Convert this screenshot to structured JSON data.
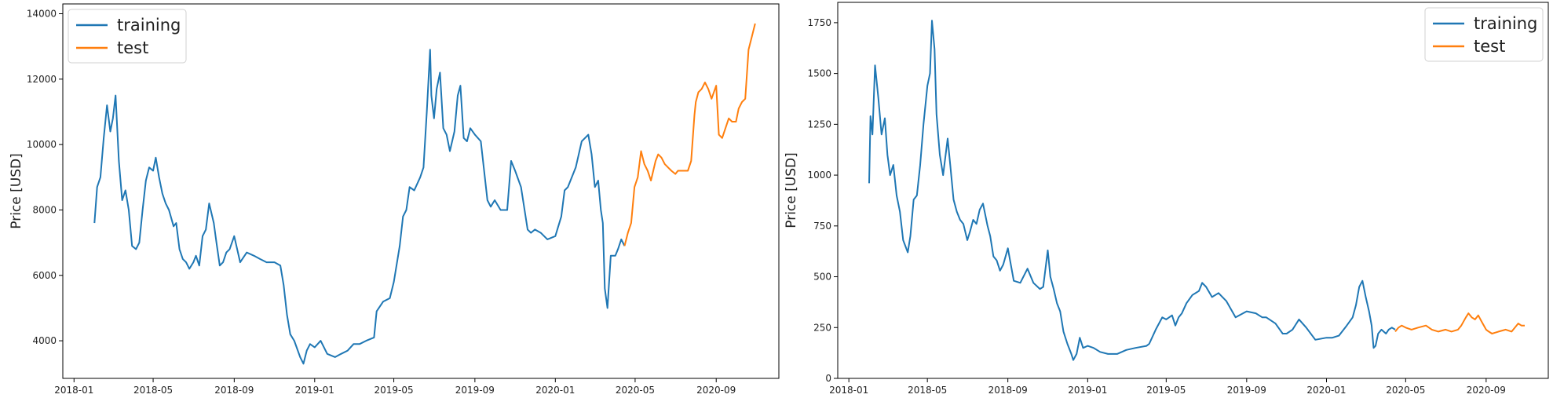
{
  "chart_data": [
    {
      "type": "line",
      "ylabel": "Price [USD]",
      "xlabel": "",
      "x_ticks": [
        "2018-01",
        "2018-05",
        "2018-09",
        "2019-01",
        "2019-05",
        "2019-09",
        "2020-01",
        "2020-05",
        "2020-09"
      ],
      "y_ticks": [
        "4000",
        "6000",
        "8000",
        "10000",
        "12000",
        "14000"
      ],
      "xlim": [
        "2017-12-15",
        "2020-12-05"
      ],
      "ylim": [
        2850,
        14300
      ],
      "legend": {
        "placement": "upper left",
        "entries": [
          "training",
          "test"
        ]
      },
      "grid": false,
      "series": [
        {
          "name": "training",
          "color": "#1f77b4",
          "x": [
            "2018-02-01",
            "2018-02-05",
            "2018-02-10",
            "2018-02-15",
            "2018-02-20",
            "2018-02-25",
            "2018-03-01",
            "2018-03-05",
            "2018-03-10",
            "2018-03-15",
            "2018-03-20",
            "2018-03-25",
            "2018-03-30",
            "2018-04-05",
            "2018-04-10",
            "2018-04-15",
            "2018-04-20",
            "2018-04-25",
            "2018-05-01",
            "2018-05-05",
            "2018-05-10",
            "2018-05-15",
            "2018-05-20",
            "2018-05-25",
            "2018-06-01",
            "2018-06-05",
            "2018-06-10",
            "2018-06-15",
            "2018-06-20",
            "2018-06-25",
            "2018-07-01",
            "2018-07-05",
            "2018-07-10",
            "2018-07-15",
            "2018-07-20",
            "2018-07-25",
            "2018-08-01",
            "2018-08-05",
            "2018-08-10",
            "2018-08-15",
            "2018-08-20",
            "2018-08-25",
            "2018-09-01",
            "2018-09-10",
            "2018-09-20",
            "2018-10-01",
            "2018-10-10",
            "2018-10-20",
            "2018-11-01",
            "2018-11-10",
            "2018-11-15",
            "2018-11-20",
            "2018-11-25",
            "2018-12-01",
            "2018-12-10",
            "2018-12-15",
            "2018-12-20",
            "2018-12-25",
            "2019-01-01",
            "2019-01-10",
            "2019-01-20",
            "2019-02-01",
            "2019-02-10",
            "2019-02-20",
            "2019-03-01",
            "2019-03-10",
            "2019-03-20",
            "2019-04-01",
            "2019-04-05",
            "2019-04-15",
            "2019-04-25",
            "2019-05-01",
            "2019-05-10",
            "2019-05-15",
            "2019-05-20",
            "2019-05-25",
            "2019-06-01",
            "2019-06-10",
            "2019-06-15",
            "2019-06-20",
            "2019-06-25",
            "2019-06-27",
            "2019-07-01",
            "2019-07-05",
            "2019-07-10",
            "2019-07-15",
            "2019-07-20",
            "2019-07-25",
            "2019-08-01",
            "2019-08-06",
            "2019-08-10",
            "2019-08-15",
            "2019-08-20",
            "2019-08-25",
            "2019-09-01",
            "2019-09-10",
            "2019-09-20",
            "2019-09-25",
            "2019-10-01",
            "2019-10-10",
            "2019-10-20",
            "2019-10-26",
            "2019-11-01",
            "2019-11-10",
            "2019-11-20",
            "2019-11-25",
            "2019-12-01",
            "2019-12-10",
            "2019-12-20",
            "2020-01-01",
            "2020-01-10",
            "2020-01-15",
            "2020-01-20",
            "2020-02-01",
            "2020-02-10",
            "2020-02-15",
            "2020-02-20",
            "2020-02-25",
            "2020-03-01",
            "2020-03-06",
            "2020-03-10",
            "2020-03-13",
            "2020-03-16",
            "2020-03-20",
            "2020-03-25",
            "2020-04-01",
            "2020-04-05",
            "2020-04-10",
            "2020-04-15"
          ],
          "values": [
            7600,
            8700,
            9000,
            10200,
            11200,
            10400,
            10800,
            11500,
            9500,
            8300,
            8600,
            8000,
            6900,
            6800,
            7000,
            8000,
            8900,
            9300,
            9200,
            9600,
            9000,
            8500,
            8200,
            8000,
            7500,
            7600,
            6800,
            6500,
            6400,
            6200,
            6400,
            6600,
            6300,
            7200,
            7400,
            8200,
            7600,
            7000,
            6300,
            6400,
            6700,
            6800,
            7200,
            6400,
            6700,
            6600,
            6500,
            6400,
            6400,
            6300,
            5700,
            4800,
            4200,
            4000,
            3500,
            3300,
            3700,
            3900,
            3800,
            4000,
            3600,
            3500,
            3600,
            3700,
            3900,
            3900,
            4000,
            4100,
            4900,
            5200,
            5300,
            5800,
            6900,
            7800,
            8000,
            8700,
            8600,
            9000,
            9300,
            11000,
            12900,
            11500,
            10800,
            11700,
            12200,
            10500,
            10300,
            9800,
            10400,
            11500,
            11800,
            10200,
            10100,
            10500,
            10300,
            10100,
            8300,
            8100,
            8300,
            8000,
            8000,
            9500,
            9200,
            8700,
            7400,
            7300,
            7400,
            7300,
            7100,
            7200,
            7800,
            8600,
            8700,
            9300,
            10100,
            10200,
            10300,
            9700,
            8700,
            8900,
            8000,
            7600,
            5600,
            5000,
            6600,
            6600,
            6800,
            7100,
            6900
          ]
        },
        {
          "name": "test",
          "color": "#ff7f0e",
          "x": [
            "2020-04-15",
            "2020-04-20",
            "2020-04-25",
            "2020-04-30",
            "2020-05-05",
            "2020-05-10",
            "2020-05-15",
            "2020-05-20",
            "2020-05-25",
            "2020-06-01",
            "2020-06-05",
            "2020-06-10",
            "2020-06-15",
            "2020-06-20",
            "2020-06-25",
            "2020-07-01",
            "2020-07-05",
            "2020-07-10",
            "2020-07-15",
            "2020-07-20",
            "2020-07-25",
            "2020-07-30",
            "2020-08-01",
            "2020-08-05",
            "2020-08-10",
            "2020-08-15",
            "2020-08-20",
            "2020-08-25",
            "2020-09-01",
            "2020-09-05",
            "2020-09-10",
            "2020-09-15",
            "2020-09-20",
            "2020-09-25",
            "2020-10-01",
            "2020-10-05",
            "2020-10-10",
            "2020-10-15",
            "2020-10-20",
            "2020-10-25",
            "2020-10-30"
          ],
          "values": [
            6900,
            7300,
            7600,
            8700,
            9000,
            9800,
            9400,
            9200,
            8900,
            9500,
            9700,
            9600,
            9400,
            9300,
            9200,
            9100,
            9200,
            9200,
            9200,
            9200,
            9500,
            10900,
            11300,
            11600,
            11700,
            11900,
            11700,
            11400,
            11800,
            10300,
            10200,
            10500,
            10800,
            10700,
            10700,
            11100,
            11300,
            11400,
            12900,
            13300,
            13700
          ]
        }
      ]
    },
    {
      "type": "line",
      "ylabel": "Price [USD]",
      "xlabel": "",
      "x_ticks": [
        "2018-01",
        "2018-05",
        "2018-09",
        "2019-01",
        "2019-05",
        "2019-09",
        "2020-01",
        "2020-05",
        "2020-09"
      ],
      "y_ticks": [
        "0",
        "250",
        "500",
        "750",
        "1000",
        "1250",
        "1500",
        "1750"
      ],
      "xlim": [
        "2017-12-15",
        "2020-12-05"
      ],
      "ylim": [
        0,
        1850
      ],
      "legend": {
        "placement": "upper right",
        "entries": [
          "training",
          "test"
        ]
      },
      "grid": false,
      "series": [
        {
          "name": "training",
          "color": "#1f77b4",
          "x": [
            "2018-02-01",
            "2018-02-03",
            "2018-02-06",
            "2018-02-10",
            "2018-02-15",
            "2018-02-20",
            "2018-02-25",
            "2018-03-01",
            "2018-03-05",
            "2018-03-10",
            "2018-03-15",
            "2018-03-20",
            "2018-03-25",
            "2018-04-01",
            "2018-04-05",
            "2018-04-10",
            "2018-04-15",
            "2018-04-20",
            "2018-04-25",
            "2018-05-01",
            "2018-05-05",
            "2018-05-08",
            "2018-05-12",
            "2018-05-15",
            "2018-05-20",
            "2018-05-25",
            "2018-06-01",
            "2018-06-05",
            "2018-06-10",
            "2018-06-15",
            "2018-06-20",
            "2018-06-25",
            "2018-07-01",
            "2018-07-05",
            "2018-07-10",
            "2018-07-15",
            "2018-07-20",
            "2018-07-25",
            "2018-08-01",
            "2018-08-05",
            "2018-08-10",
            "2018-08-15",
            "2018-08-20",
            "2018-08-25",
            "2018-09-01",
            "2018-09-10",
            "2018-09-20",
            "2018-10-01",
            "2018-10-10",
            "2018-10-20",
            "2018-10-25",
            "2018-11-01",
            "2018-11-05",
            "2018-11-10",
            "2018-11-15",
            "2018-11-20",
            "2018-11-25",
            "2018-12-01",
            "2018-12-07",
            "2018-12-10",
            "2018-12-15",
            "2018-12-20",
            "2018-12-25",
            "2019-01-01",
            "2019-01-10",
            "2019-01-20",
            "2019-02-01",
            "2019-02-15",
            "2019-03-01",
            "2019-03-15",
            "2019-04-01",
            "2019-04-05",
            "2019-04-15",
            "2019-04-25",
            "2019-05-01",
            "2019-05-10",
            "2019-05-15",
            "2019-05-20",
            "2019-05-25",
            "2019-06-01",
            "2019-06-10",
            "2019-06-20",
            "2019-06-25",
            "2019-07-01",
            "2019-07-10",
            "2019-07-20",
            "2019-08-01",
            "2019-08-15",
            "2019-09-01",
            "2019-09-15",
            "2019-09-25",
            "2019-10-01",
            "2019-10-15",
            "2019-10-26",
            "2019-11-01",
            "2019-11-10",
            "2019-11-20",
            "2019-12-01",
            "2019-12-15",
            "2020-01-01",
            "2020-01-10",
            "2020-01-20",
            "2020-02-01",
            "2020-02-10",
            "2020-02-15",
            "2020-02-20",
            "2020-02-25",
            "2020-03-01",
            "2020-03-06",
            "2020-03-10",
            "2020-03-13",
            "2020-03-16",
            "2020-03-20",
            "2020-03-25",
            "2020-04-01",
            "2020-04-05",
            "2020-04-10",
            "2020-04-15"
          ],
          "values": [
            960,
            1290,
            1200,
            1540,
            1380,
            1200,
            1280,
            1100,
            1000,
            1050,
            900,
            820,
            680,
            620,
            700,
            880,
            900,
            1050,
            1250,
            1440,
            1500,
            1760,
            1620,
            1300,
            1100,
            1000,
            1180,
            1050,
            880,
            820,
            780,
            760,
            680,
            720,
            780,
            760,
            830,
            860,
            750,
            700,
            600,
            580,
            530,
            560,
            640,
            480,
            470,
            540,
            470,
            440,
            450,
            630,
            500,
            440,
            370,
            330,
            230,
            170,
            120,
            90,
            120,
            200,
            150,
            160,
            150,
            130,
            120,
            120,
            140,
            150,
            160,
            170,
            240,
            300,
            290,
            310,
            260,
            300,
            320,
            370,
            410,
            430,
            470,
            450,
            400,
            420,
            380,
            300,
            330,
            320,
            300,
            300,
            270,
            220,
            220,
            240,
            290,
            250,
            190,
            200,
            200,
            210,
            260,
            300,
            360,
            450,
            480,
            400,
            330,
            260,
            150,
            160,
            220,
            240,
            220,
            240,
            250,
            240
          ]
        },
        {
          "name": "test",
          "color": "#ff7f0e",
          "x": [
            "2020-04-15",
            "2020-04-20",
            "2020-04-25",
            "2020-05-01",
            "2020-05-10",
            "2020-05-20",
            "2020-06-01",
            "2020-06-10",
            "2020-06-20",
            "2020-07-01",
            "2020-07-10",
            "2020-07-20",
            "2020-07-25",
            "2020-08-01",
            "2020-08-05",
            "2020-08-10",
            "2020-08-15",
            "2020-08-20",
            "2020-08-25",
            "2020-09-01",
            "2020-09-05",
            "2020-09-10",
            "2020-09-20",
            "2020-10-01",
            "2020-10-10",
            "2020-10-15",
            "2020-10-20",
            "2020-10-25",
            "2020-10-30"
          ],
          "values": [
            230,
            250,
            260,
            250,
            240,
            250,
            260,
            240,
            230,
            240,
            230,
            240,
            260,
            300,
            320,
            300,
            290,
            310,
            280,
            240,
            230,
            220,
            230,
            240,
            230,
            250,
            270,
            260,
            260
          ]
        }
      ]
    }
  ]
}
